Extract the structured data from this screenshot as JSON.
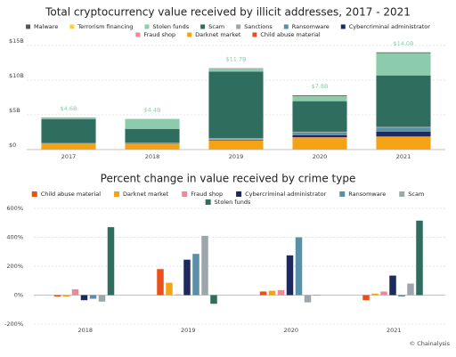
{
  "chart_data": [
    {
      "type": "bar",
      "stacked": true,
      "title": "Total cryptocurrency value received by illicit addresses, 2017 - 2021",
      "categories": [
        "2017",
        "2018",
        "2019",
        "2020",
        "2021"
      ],
      "series": [
        {
          "name": "Child abuse material",
          "color": "#e8501c",
          "values": [
            0,
            0.01,
            0.01,
            0.02,
            0.01
          ]
        },
        {
          "name": "Darknet market",
          "color": "#f5a316",
          "values": [
            0.8,
            0.75,
            1.3,
            1.7,
            1.8
          ]
        },
        {
          "name": "Fraud shop",
          "color": "#ec8a97",
          "values": [
            0.02,
            0.03,
            0.03,
            0.05,
            0.07
          ]
        },
        {
          "name": "Cybercriminal administrator",
          "color": "#1e2a5e",
          "values": [
            0.03,
            0.03,
            0.08,
            0.3,
            0.7
          ]
        },
        {
          "name": "Ransomware",
          "color": "#5a8fa8",
          "values": [
            0.01,
            0.01,
            0.02,
            0.4,
            0.6
          ]
        },
        {
          "name": "Sanctions",
          "color": "#9da6ab",
          "values": [
            0.1,
            0.15,
            0.2,
            0.1,
            0.1
          ]
        },
        {
          "name": "Scam",
          "color": "#2f6e5f",
          "values": [
            3.4,
            2.0,
            9.6,
            4.4,
            7.4
          ]
        },
        {
          "name": "Stolen funds",
          "color": "#8ccbab",
          "values": [
            0.2,
            1.4,
            0.4,
            0.7,
            3.2
          ]
        },
        {
          "name": "Terrorism financing",
          "color": "#f6d44a",
          "values": [
            0,
            0,
            0.01,
            0.01,
            0.01
          ]
        },
        {
          "name": "Malware",
          "color": "#555555",
          "values": [
            0.04,
            0.02,
            0.05,
            0.12,
            0.11
          ]
        }
      ],
      "legend_order": [
        9,
        8,
        7,
        6,
        5,
        4,
        3,
        2,
        1,
        0
      ],
      "totals": {
        "values": [
          4.6,
          4.4,
          11.7,
          7.8,
          14.0
        ],
        "value_labels": [
          "$4.6B",
          "$4.4B",
          "$11.7B",
          "$7.8B",
          "$14.0B"
        ]
      },
      "ylim": [
        0,
        15
      ],
      "yticks": [
        {
          "value": 0,
          "label": "$0"
        },
        {
          "value": 5,
          "label": "$5B"
        },
        {
          "value": 10,
          "label": "$10B"
        },
        {
          "value": 15,
          "label": "$15B"
        }
      ],
      "grid": true
    },
    {
      "type": "bar",
      "stacked": false,
      "title": "Percent change in value received by crime type",
      "categories": [
        "2018",
        "2019",
        "2020",
        "2021"
      ],
      "series": [
        {
          "name": "Child abuse material",
          "color": "#e8501c",
          "values": [
            -10,
            180,
            25,
            -35
          ]
        },
        {
          "name": "Darknet market",
          "color": "#f5a316",
          "values": [
            -10,
            85,
            30,
            10
          ]
        },
        {
          "name": "Fraud shop",
          "color": "#ec8a97",
          "values": [
            40,
            5,
            35,
            25
          ]
        },
        {
          "name": "Cybercriminal administrator",
          "color": "#1e2a5e",
          "values": [
            -35,
            245,
            275,
            135
          ]
        },
        {
          "name": "Ransomware",
          "color": "#5a8fa8",
          "values": [
            -25,
            285,
            400,
            -10
          ]
        },
        {
          "name": "Scam",
          "color": "#9da6ab",
          "values": [
            -45,
            410,
            -50,
            80
          ]
        },
        {
          "name": "Stolen funds",
          "color": "#2f6e5f",
          "values": [
            470,
            -60,
            2,
            515
          ]
        }
      ],
      "ylim": [
        -200,
        600
      ],
      "yticks": [
        {
          "value": -200,
          "label": "-200%"
        },
        {
          "value": 0,
          "label": "0%"
        },
        {
          "value": 200,
          "label": "200%"
        },
        {
          "value": 400,
          "label": "400%"
        },
        {
          "value": 600,
          "label": "600%"
        }
      ],
      "grid": true
    }
  ],
  "footer": "© Chainalysis"
}
